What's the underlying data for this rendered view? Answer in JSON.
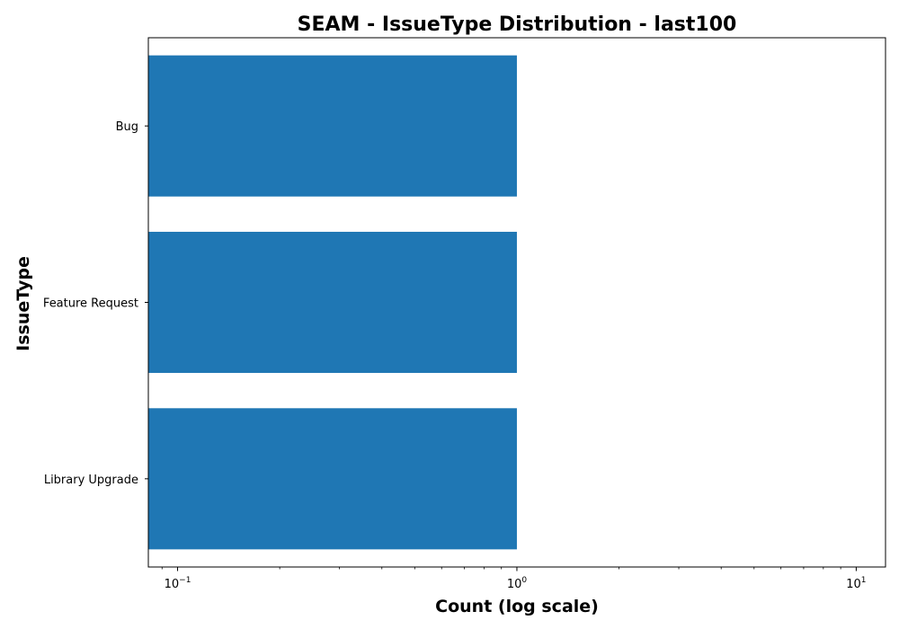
{
  "chart_data": {
    "type": "bar",
    "orientation": "horizontal",
    "title": "SEAM - IssueType Distribution - last100",
    "xlabel": "Count (log scale)",
    "ylabel": "IssueType",
    "x_scale": "log",
    "xlim": [
      0.082,
      12.2
    ],
    "categories": [
      "Bug",
      "Feature Request",
      "Library Upgrade"
    ],
    "values": [
      1,
      1,
      1
    ],
    "x_major_ticks": [
      {
        "value": 0.1,
        "base": "10",
        "exp": "−1"
      },
      {
        "value": 1,
        "base": "10",
        "exp": "0"
      },
      {
        "value": 10,
        "base": "10",
        "exp": "1"
      }
    ],
    "bar_color": "#1f77b4",
    "grid": false,
    "legend": "none"
  }
}
